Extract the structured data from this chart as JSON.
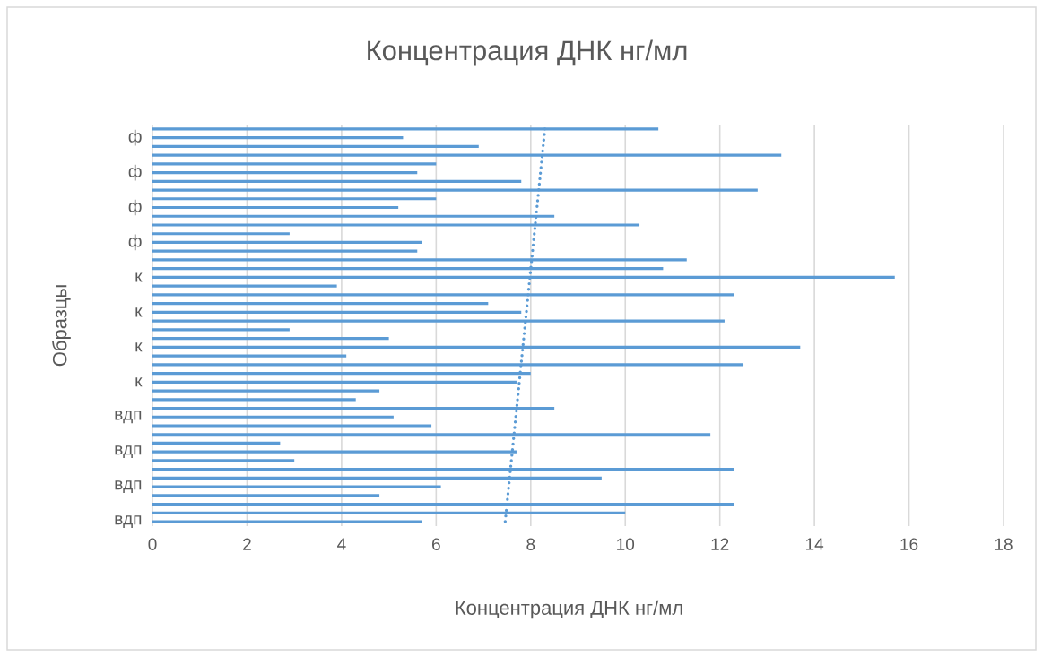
{
  "chart_data": {
    "type": "bar",
    "orientation": "horizontal",
    "title": "Концентрация ДНК нг/мл",
    "xlabel": "Концентрация ДНК нг/мл",
    "ylabel": "Образцы",
    "categories": [
      null,
      "ф",
      null,
      null,
      null,
      "ф",
      null,
      null,
      null,
      "ф",
      null,
      null,
      null,
      "ф",
      null,
      null,
      null,
      "к",
      null,
      null,
      null,
      "к",
      null,
      null,
      null,
      "к",
      null,
      null,
      null,
      "к",
      null,
      null,
      null,
      "вдп",
      null,
      null,
      null,
      "вдп",
      null,
      null,
      null,
      "вдп",
      null,
      null,
      null,
      "вдп"
    ],
    "xlim": [
      0,
      18
    ],
    "xticks": [
      0,
      2,
      4,
      6,
      8,
      10,
      12,
      14,
      16,
      18
    ],
    "grid": "x",
    "series": [
      {
        "color": "#5b9bd5",
        "values": [
          10.7,
          5.3,
          6.9,
          13.3,
          6.0,
          5.6,
          7.8,
          12.8,
          6.0,
          5.2,
          8.5,
          10.3,
          2.9,
          5.7,
          5.6,
          11.3,
          10.8,
          15.7,
          3.9,
          12.3,
          7.1,
          7.8,
          12.1,
          2.9,
          5.0,
          13.7,
          4.1,
          12.5,
          8.0,
          7.7,
          4.8,
          4.3,
          8.5,
          5.1,
          5.9,
          11.8,
          2.7,
          7.7,
          3.0,
          12.3,
          9.5,
          6.1,
          4.8,
          12.3,
          10.0,
          5.7
        ]
      },
      {
        "type": "line",
        "line_style": "dotted",
        "color": "#5b9bd5",
        "values": [
          8.3,
          null,
          null,
          null,
          null,
          null,
          null,
          null,
          null,
          null,
          null,
          null,
          null,
          null,
          null,
          null,
          null,
          null,
          null,
          null,
          null,
          null,
          null,
          null,
          null,
          null,
          null,
          null,
          null,
          null,
          null,
          null,
          null,
          null,
          null,
          null,
          null,
          null,
          null,
          null,
          null,
          null,
          null,
          null,
          null,
          7.46
        ]
      }
    ]
  }
}
